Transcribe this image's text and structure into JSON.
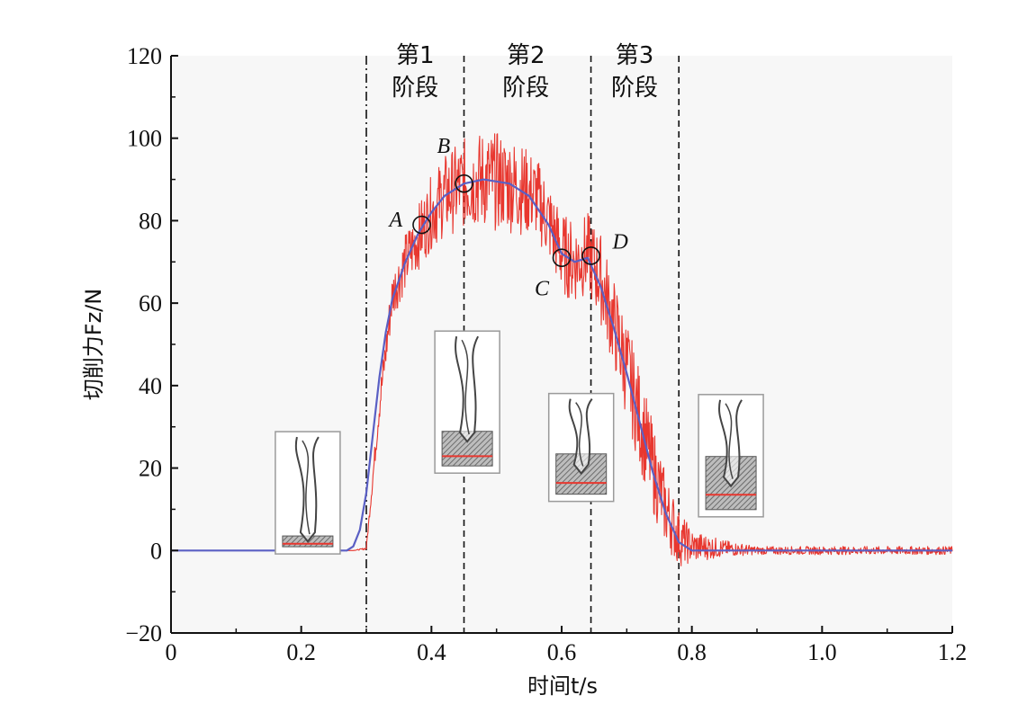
{
  "chart_data": {
    "type": "line",
    "xlabel": "时间t/s",
    "ylabel": "切削力Fz/N",
    "xlim": [
      0,
      1.2
    ],
    "ylim": [
      -20,
      120
    ],
    "x_ticks": [
      "0",
      "0.2",
      "0.4",
      "0.6",
      "0.8",
      "1.0",
      "1.2"
    ],
    "y_ticks": [
      "−20",
      "0",
      "20",
      "40",
      "60",
      "80",
      "100",
      "120"
    ],
    "grid": false,
    "colors": {
      "raw": "#e8372f",
      "smooth": "#5a5fc4",
      "axis": "#111111"
    },
    "series": [
      {
        "role": "raw",
        "x": [
          0,
          0.28,
          0.3,
          0.32,
          0.34,
          0.36,
          0.38,
          0.4,
          0.42,
          0.45,
          0.48,
          0.52,
          0.56,
          0.58,
          0.6,
          0.62,
          0.64,
          0.66,
          0.68,
          0.7,
          0.72,
          0.74,
          0.76,
          0.78,
          0.8,
          0.85,
          0.9,
          1.0,
          1.1,
          1.2
        ],
        "values": [
          0,
          0,
          0.5,
          35,
          62,
          70,
          76,
          82,
          86,
          89,
          90,
          89,
          86,
          80,
          72,
          70,
          72,
          66,
          55,
          44,
          32,
          20,
          10,
          3,
          1,
          0.5,
          0,
          0,
          0,
          0
        ],
        "noise": [
          0,
          0,
          0.3,
          4,
          6,
          7,
          8,
          9,
          10,
          11,
          12,
          12,
          10,
          10,
          10,
          10,
          10,
          11,
          11,
          12,
          12,
          11,
          9,
          7,
          4,
          2,
          1,
          1,
          1,
          1
        ]
      },
      {
        "role": "smooth",
        "x": [
          0,
          0.27,
          0.28,
          0.29,
          0.3,
          0.31,
          0.32,
          0.33,
          0.34,
          0.36,
          0.38,
          0.4,
          0.42,
          0.45,
          0.48,
          0.52,
          0.55,
          0.58,
          0.6,
          0.62,
          0.64,
          0.66,
          0.68,
          0.7,
          0.72,
          0.74,
          0.76,
          0.78,
          0.8,
          0.85,
          1.2
        ],
        "values": [
          0,
          0,
          1,
          5,
          14,
          28,
          42,
          53,
          61,
          70,
          77,
          82,
          86,
          89,
          90,
          89,
          86,
          79,
          72,
          70,
          71,
          64,
          54,
          43,
          31,
          19,
          9,
          2,
          0,
          0,
          0
        ]
      }
    ],
    "stage_lines": [
      {
        "x": 0.3,
        "style": "dash-dot"
      },
      {
        "x": 0.45,
        "style": "dashed"
      },
      {
        "x": 0.645,
        "style": "dashed"
      },
      {
        "x": 0.78,
        "style": "dashed"
      }
    ],
    "stages": [
      {
        "line1": "第1",
        "line2": "阶段",
        "x": 0.375
      },
      {
        "line1": "第2",
        "line2": "阶段",
        "x": 0.545
      },
      {
        "line1": "第3",
        "line2": "阶段",
        "x": 0.712
      }
    ],
    "points": [
      {
        "label": "A",
        "x": 0.385,
        "y": 79,
        "label_side": "left"
      },
      {
        "label": "B",
        "x": 0.45,
        "y": 89,
        "label_side": "upper-left"
      },
      {
        "label": "C",
        "x": 0.6,
        "y": 71,
        "label_side": "lower-left"
      },
      {
        "label": "D",
        "x": 0.645,
        "y": 71.5,
        "label_side": "right"
      }
    ],
    "insets": [
      {
        "name": "inset-tool-before-entry",
        "x": 0.21,
        "y": 14,
        "depth": 0.35
      },
      {
        "name": "inset-tool-stage1-end",
        "x": 0.455,
        "y": 36,
        "depth": 0.55
      },
      {
        "name": "inset-tool-stage2-end",
        "x": 0.63,
        "y": 25,
        "depth": 0.85
      },
      {
        "name": "inset-tool-exit",
        "x": 0.86,
        "y": 23,
        "depth": 1.0
      }
    ]
  }
}
